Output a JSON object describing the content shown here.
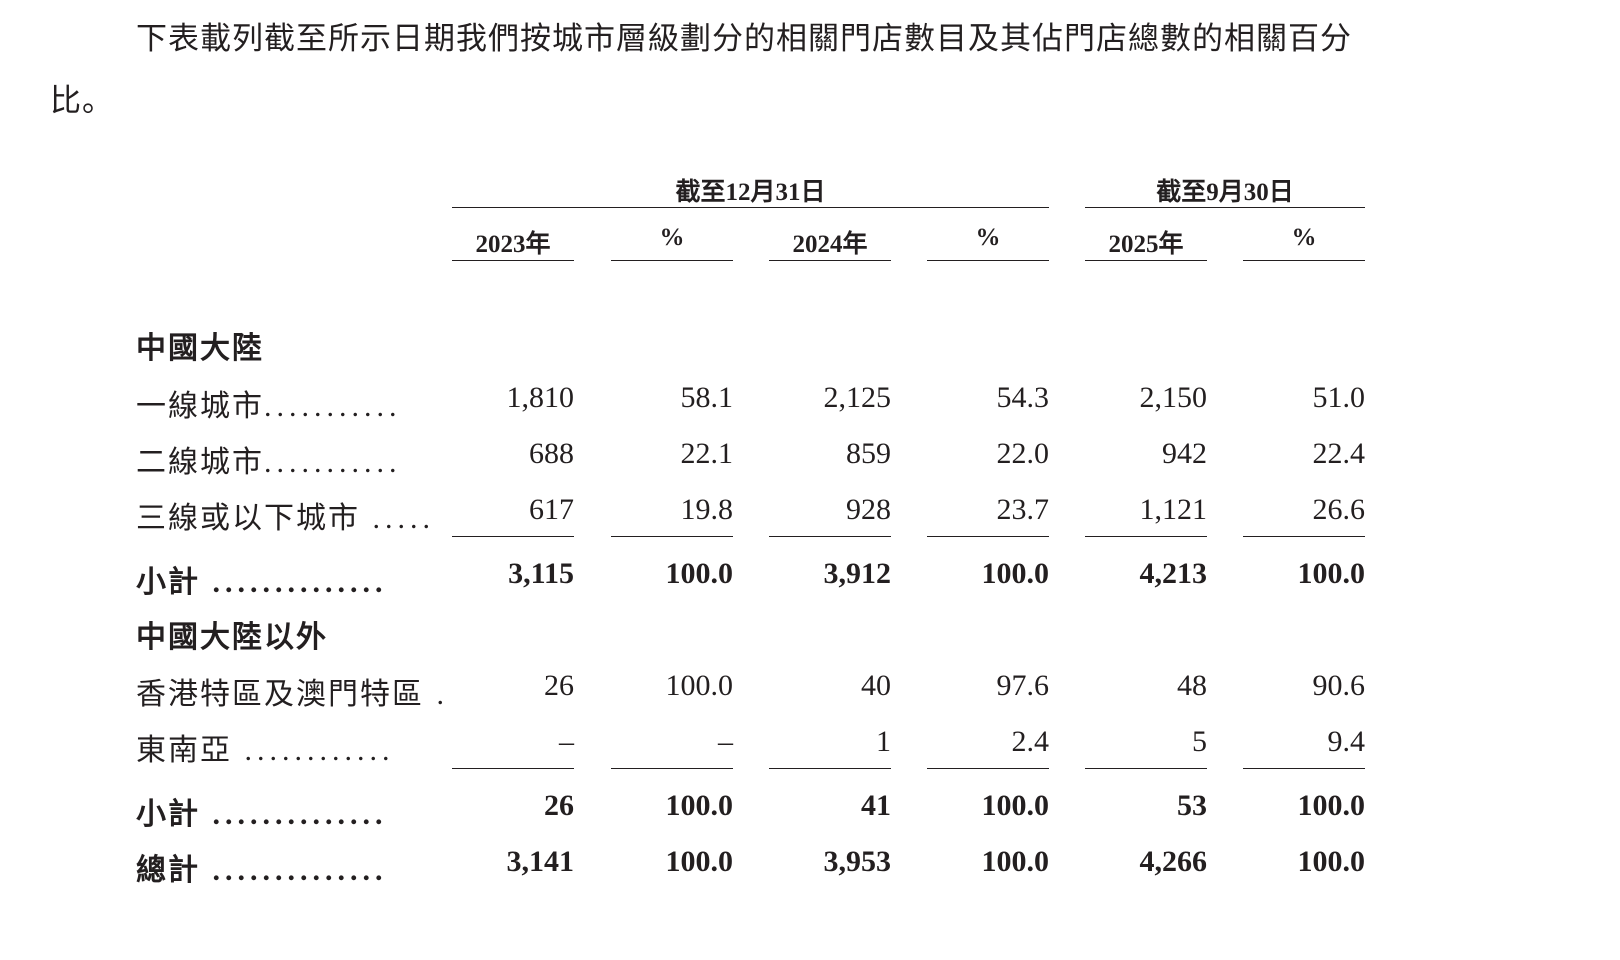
{
  "intro": "下表載列截至所示日期我們按城市層級劃分的相關門店數目及其佔門店總數的相關百分比。",
  "table": {
    "group_headers": [
      "截至12月31日",
      "截至9月30日"
    ],
    "column_headers": [
      "2023年",
      "%",
      "2024年",
      "%",
      "2025年",
      "%"
    ],
    "sections": [
      {
        "title": "中國大陸",
        "rows": [
          {
            "label": "一線城市",
            "leader": "...........",
            "values": [
              "1,810",
              "58.1",
              "2,125",
              "54.3",
              "2,150",
              "51.0"
            ]
          },
          {
            "label": "二線城市",
            "leader": "...........",
            "values": [
              "688",
              "22.1",
              "859",
              "22.0",
              "942",
              "22.4"
            ]
          },
          {
            "label": "三線或以下城市",
            "leader": " .....",
            "values": [
              "617",
              "19.8",
              "928",
              "23.7",
              "1,121",
              "26.6"
            ]
          }
        ],
        "subtotal": {
          "label": "小計",
          "leader": " ..............",
          "values": [
            "3,115",
            "100.0",
            "3,912",
            "100.0",
            "4,213",
            "100.0"
          ]
        }
      },
      {
        "title": "中國大陸以外",
        "rows": [
          {
            "label": "香港特區及澳門特區",
            "leader": " .",
            "values": [
              "26",
              "100.0",
              "40",
              "97.6",
              "48",
              "90.6"
            ]
          },
          {
            "label": "東南亞",
            "leader": " ............",
            "values": [
              "–",
              "–",
              "1",
              "2.4",
              "5",
              "9.4"
            ]
          }
        ],
        "subtotal": {
          "label": "小計",
          "leader": " ..............",
          "values": [
            "26",
            "100.0",
            "41",
            "100.0",
            "53",
            "100.0"
          ]
        }
      }
    ],
    "total": {
      "label": "總計",
      "leader": " ..............",
      "values": [
        "3,141",
        "100.0",
        "3,953",
        "100.0",
        "4,266",
        "100.0"
      ]
    }
  }
}
